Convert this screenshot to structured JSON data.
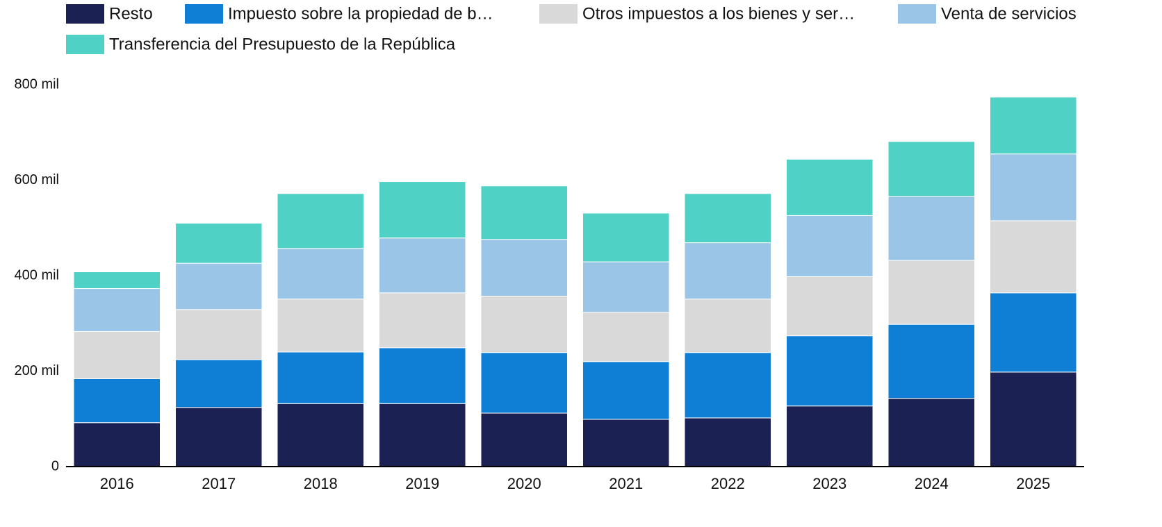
{
  "chart_data": {
    "type": "stacked-bar",
    "categories": [
      "2016",
      "2017",
      "2018",
      "2019",
      "2020",
      "2021",
      "2022",
      "2023",
      "2024",
      "2025"
    ],
    "series": [
      {
        "name": "Resto",
        "color": "#1b2152",
        "values": [
          92000,
          124000,
          132000,
          132000,
          112000,
          99000,
          102000,
          127000,
          143000,
          198000
        ]
      },
      {
        "name": "Impuesto sobre la propiedad de b…",
        "color": "#0f7fd6",
        "values": [
          92000,
          100000,
          108000,
          117000,
          127000,
          121000,
          137000,
          147000,
          155000,
          166000
        ]
      },
      {
        "name": "Otros impuestos a los bienes y ser…",
        "color": "#d9d9d9",
        "values": [
          99000,
          105000,
          111000,
          115000,
          118000,
          103000,
          112000,
          124000,
          134000,
          151000
        ]
      },
      {
        "name": "Venta de servicios",
        "color": "#9bc5e6",
        "values": [
          90000,
          97000,
          106000,
          115000,
          119000,
          106000,
          118000,
          128000,
          134000,
          140000
        ]
      },
      {
        "name": "Transferencia del Presupuesto de la República",
        "color": "#4fd1c5",
        "values": [
          35000,
          84000,
          115000,
          118000,
          112000,
          102000,
          103000,
          118000,
          115000,
          119000
        ]
      }
    ],
    "ylim": [
      0,
      800000
    ],
    "yticks": [
      0,
      {
        "value": 200000,
        "label": "200 mil"
      },
      {
        "value": 400000,
        "label": "400 mil"
      },
      {
        "value": 600000,
        "label": "600 mil"
      },
      {
        "value": 800000,
        "label": "800 mil"
      }
    ]
  }
}
